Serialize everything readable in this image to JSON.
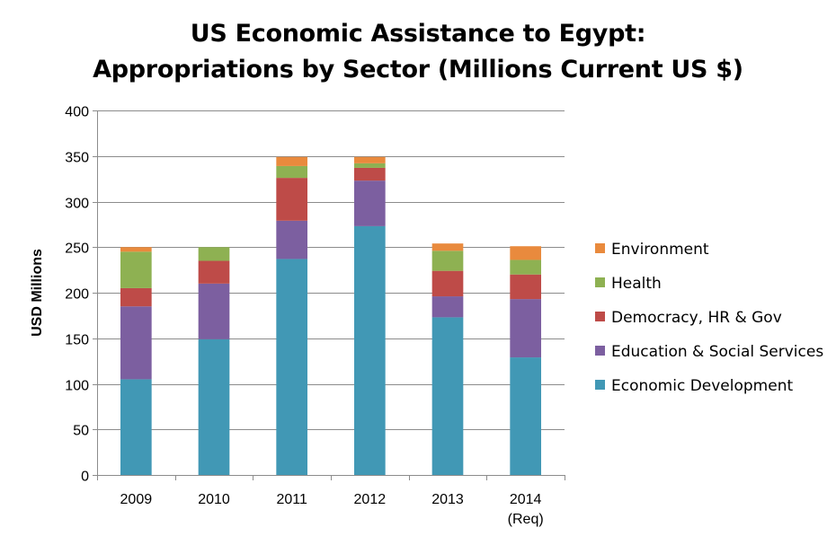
{
  "chart_data": {
    "type": "bar",
    "stacked": true,
    "title": "US Economic Assistance to Egypt:",
    "subtitle": "Appropriations by Sector (Millions Current US $)",
    "xlabel": "",
    "ylabel": "USD Millions",
    "ylim": [
      0,
      400
    ],
    "yticks": [
      0,
      50,
      100,
      150,
      200,
      250,
      300,
      350,
      400
    ],
    "grid": true,
    "legend_position": "right",
    "categories": [
      "2009",
      "2010",
      "2011",
      "2012",
      "2013",
      "2014 (Req)"
    ],
    "category_lines": [
      [
        "2009"
      ],
      [
        "2010"
      ],
      [
        "2011"
      ],
      [
        "2012"
      ],
      [
        "2013"
      ],
      [
        "2014",
        "(Req)"
      ]
    ],
    "series": [
      {
        "name": "Economic Development",
        "color": "#4198B5",
        "values": [
          105,
          149,
          237,
          273,
          173,
          129
        ]
      },
      {
        "name": "Education & Social Services",
        "color": "#7C5FA0",
        "values": [
          80,
          61,
          42,
          50,
          23,
          64
        ]
      },
      {
        "name": "Democracy, HR & Gov",
        "color": "#BE4B48",
        "values": [
          20,
          25,
          47,
          14,
          28,
          27
        ]
      },
      {
        "name": "Health",
        "color": "#8EB152",
        "values": [
          40,
          15,
          13,
          5,
          22,
          16
        ]
      },
      {
        "name": "Environment",
        "color": "#E98A3D",
        "values": [
          5,
          0,
          10,
          7,
          8,
          15
        ]
      }
    ]
  }
}
